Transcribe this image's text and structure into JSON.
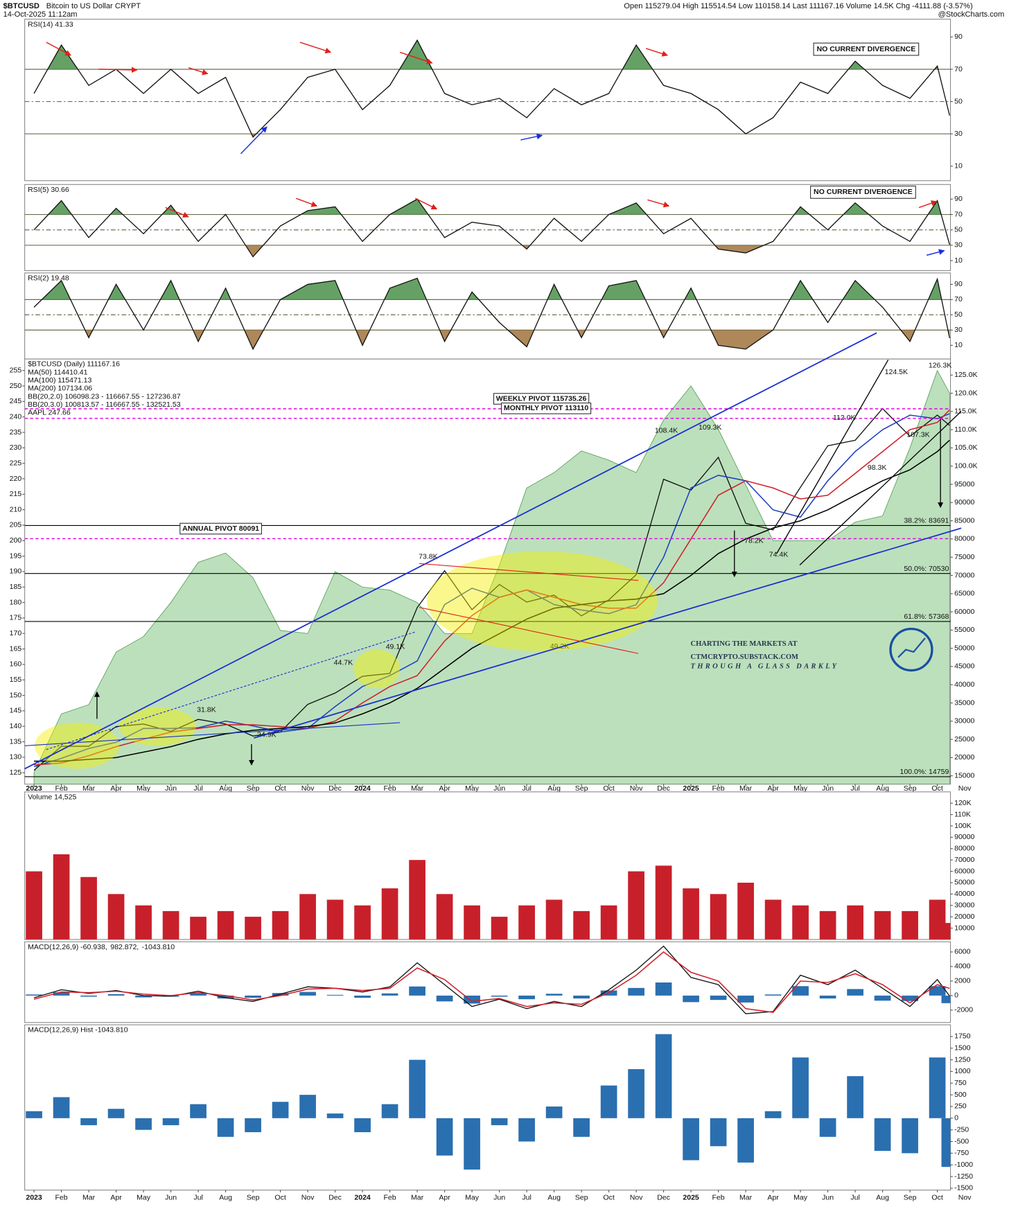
{
  "header": {
    "symbol": "$BTCUSD",
    "name": "Bitcoin to US Dollar CRYPT",
    "date": "14-Oct-2025 11:12am",
    "quote": "Open 115279.04 High 115514.54 Low 110158.14 Last 111167.16 Volume 14.5K Chg -4111.88 (-3.57%)",
    "source": "@StockCharts.com"
  },
  "watermark": [
    "CHARTING THE MARKETS AT",
    "CTMCRYPTO.SUBSTACK.COM",
    "THROUGH A GLASS DARKLY"
  ],
  "chart_data": [
    {
      "type": "line",
      "ylim": [
        1,
        101
      ],
      "yticks": [
        10,
        30,
        50,
        70,
        90
      ],
      "levels": [
        30,
        50,
        70
      ],
      "note": "NO CURRENT DIVERGENCE",
      "series": [
        {
          "name": "RSI(14) 41.33",
          "color": "#111111",
          "values": [
            55,
            85,
            60,
            70,
            55,
            70,
            55,
            65,
            28,
            45,
            65,
            70,
            45,
            60,
            88,
            55,
            48,
            52,
            40,
            58,
            48,
            55,
            85,
            60,
            55,
            45,
            30,
            40,
            62,
            55,
            75,
            60,
            52,
            72,
            41.33
          ]
        }
      ]
    },
    {
      "type": "line",
      "ylim": [
        -3,
        109
      ],
      "yticks": [
        10,
        30,
        50,
        70,
        90
      ],
      "levels": [
        30,
        50,
        70
      ],
      "note": "NO CURRENT DIVERGENCE",
      "series": [
        {
          "name": "RSI(5) 30.66",
          "color": "#111111",
          "values": [
            50,
            88,
            40,
            78,
            45,
            82,
            35,
            70,
            15,
            55,
            75,
            80,
            35,
            70,
            90,
            40,
            60,
            55,
            25,
            65,
            35,
            70,
            85,
            45,
            65,
            25,
            20,
            35,
            80,
            50,
            85,
            55,
            35,
            88,
            30.66
          ]
        }
      ]
    },
    {
      "type": "line",
      "ylim": [
        -8,
        105
      ],
      "yticks": [
        10,
        30,
        50,
        70,
        90
      ],
      "levels": [
        30,
        50,
        70
      ],
      "series": [
        {
          "name": "RSI(2) 19.48",
          "color": "#111111",
          "values": [
            60,
            95,
            20,
            90,
            30,
            95,
            15,
            85,
            5,
            70,
            90,
            95,
            10,
            85,
            98,
            15,
            80,
            40,
            8,
            90,
            20,
            88,
            95,
            20,
            85,
            10,
            5,
            30,
            95,
            40,
            95,
            60,
            15,
            97,
            19.48
          ]
        }
      ]
    },
    {
      "type": "line",
      "x": [
        0,
        1,
        2,
        3,
        4,
        5,
        6,
        7,
        8,
        9,
        10,
        11,
        12,
        13,
        14,
        15,
        16,
        17,
        18,
        19,
        20,
        21,
        22,
        23,
        24,
        25,
        26,
        27,
        28,
        29,
        30,
        31,
        32,
        33,
        33.45
      ],
      "xlim": [
        -0.34,
        33.48
      ],
      "xticks": [
        {
          "value": 0,
          "label": "2023"
        },
        {
          "value": 1,
          "label": "Feb"
        },
        {
          "value": 2,
          "label": "Mar"
        },
        {
          "value": 3,
          "label": "Apr"
        },
        {
          "value": 4,
          "label": "May"
        },
        {
          "value": 5,
          "label": "Jun"
        },
        {
          "value": 6,
          "label": "Jul"
        },
        {
          "value": 7,
          "label": "Aug"
        },
        {
          "value": 8,
          "label": "Sep"
        },
        {
          "value": 9,
          "label": "Oct"
        },
        {
          "value": 10,
          "label": "Nov"
        },
        {
          "value": 11,
          "label": "Dec"
        },
        {
          "value": 12,
          "label": "2024"
        },
        {
          "value": 13,
          "label": "Feb"
        },
        {
          "value": 14,
          "label": "Mar"
        },
        {
          "value": 15,
          "label": "Apr"
        },
        {
          "value": 16,
          "label": "May"
        },
        {
          "value": 17,
          "label": "Jun"
        },
        {
          "value": 18,
          "label": "Jul"
        },
        {
          "value": 19,
          "label": "Aug"
        },
        {
          "value": 20,
          "label": "Sep"
        },
        {
          "value": 21,
          "label": "Oct"
        },
        {
          "value": 22,
          "label": "Nov"
        },
        {
          "value": 23,
          "label": "Dec"
        },
        {
          "value": 24,
          "label": "2025"
        },
        {
          "value": 25,
          "label": "Feb"
        },
        {
          "value": 26,
          "label": "Mar"
        },
        {
          "value": 27,
          "label": "Apr"
        },
        {
          "value": 28,
          "label": "May"
        },
        {
          "value": 29,
          "label": "Jun"
        },
        {
          "value": 30,
          "label": "Jul"
        },
        {
          "value": 31,
          "label": "Aug"
        },
        {
          "value": 32,
          "label": "Sep"
        },
        {
          "value": 33,
          "label": "Oct"
        },
        {
          "value": 34,
          "label": "Nov"
        }
      ],
      "ylim": [
        12700,
        129400
      ],
      "yticks": [
        15000,
        20000,
        25000,
        30000,
        35000,
        40000,
        45000,
        50000,
        55000,
        60000,
        65000,
        70000,
        75000,
        80000,
        85000,
        90000,
        95000,
        {
          "value": 100000,
          "label": "100.0K"
        },
        {
          "value": 105000,
          "label": "105.0K"
        },
        {
          "value": 110000,
          "label": "110.0K"
        },
        {
          "value": 115000,
          "label": "115.0K"
        },
        {
          "value": 120000,
          "label": "120.0K"
        },
        {
          "value": 125000,
          "label": "125.0K"
        }
      ],
      "y2lim": [
        121.3,
        258.7
      ],
      "y2ticks": [
        125,
        130,
        135,
        140,
        145,
        150,
        155,
        160,
        165,
        170,
        175,
        180,
        185,
        190,
        195,
        200,
        205,
        210,
        215,
        220,
        225,
        230,
        235,
        240,
        245,
        250,
        255
      ],
      "legend_notes": [
        "BB(20,2.0) 106098.23 - 116667.55 - 127236.87",
        "BB(20,3.0) 100813.57 - 116667.55 - 132521.53"
      ],
      "pivots": [
        {
          "label": "WEEKLY PIVOT 115735.26",
          "value": 115735.26
        },
        {
          "label": "MONTHLY PIVOT 113110",
          "value": 113110
        },
        {
          "label": "ANNUAL PIVOT 80091",
          "value": 80091
        }
      ],
      "fib_levels": [
        {
          "label": "38.2%: 83691",
          "value": 83691
        },
        {
          "label": "50.0%: 70530",
          "value": 70530
        },
        {
          "label": "61.8%: 57368",
          "value": 57368
        },
        {
          "label": "100.0%: 14759",
          "value": 14759
        }
      ],
      "annotations": [
        {
          "text": "73.8K",
          "x": 14.4,
          "y": 73800
        },
        {
          "text": "108.4K",
          "x": 23.1,
          "y": 108400
        },
        {
          "text": "109.3K",
          "x": 24.7,
          "y": 109300
        },
        {
          "text": "74.4K",
          "x": 27.2,
          "y": 74400
        },
        {
          "text": "112.0K",
          "x": 29.6,
          "y": 112000
        },
        {
          "text": "124.5K",
          "x": 31.5,
          "y": 124500
        },
        {
          "text": "126.3K",
          "x": 33.1,
          "y": 126300
        },
        {
          "text": "49.2K",
          "x": 19.2,
          "y": 49200
        },
        {
          "text": "49.1K",
          "x": 13.2,
          "y": 49100
        },
        {
          "text": "44.7K",
          "x": 11.3,
          "y": 44700
        },
        {
          "text": "31.8K",
          "x": 6.3,
          "y": 31800
        },
        {
          "text": "24.9K",
          "x": 8.5,
          "y": 24900
        },
        {
          "text": "78.2K",
          "x": 26.3,
          "y": 78200
        },
        {
          "text": "98.3K",
          "x": 30.8,
          "y": 98300
        },
        {
          "text": "107.3K",
          "x": 32.3,
          "y": 107300
        }
      ],
      "series": [
        {
          "name": "$BTCUSD (Daily) 111167.16",
          "color": "#111111",
          "values": [
            16500,
            23100,
            23100,
            28500,
            29200,
            27200,
            30500,
            29200,
            25900,
            27000,
            34600,
            37700,
            42300,
            43100,
            61200,
            71300,
            60600,
            67500,
            62700,
            64600,
            58900,
            63300,
            70200,
            96400,
            93400,
            102400,
            84300,
            82500,
            94200,
            105600,
            107100,
            115800,
            108200,
            114000,
            111167.16
          ]
        },
        {
          "name": "MA(50) 114410.41",
          "color": "#1f3fbf",
          "values": [
            17500,
            19800,
            22500,
            24200,
            28000,
            28000,
            28200,
            30000,
            28700,
            27000,
            28000,
            34000,
            39500,
            42500,
            46500,
            62000,
            66500,
            64000,
            66000,
            62000,
            60500,
            59500,
            62000,
            75000,
            94000,
            97500,
            96000,
            88000,
            86000,
            96000,
            104000,
            110000,
            114000,
            113000,
            114410.41
          ]
        },
        {
          "name": "MA(100) 115471.13",
          "color": "#d0202a",
          "values": [
            18000,
            18500,
            20500,
            23000,
            25000,
            27000,
            28000,
            29000,
            29000,
            28500,
            28000,
            30000,
            35000,
            39500,
            42500,
            52000,
            59000,
            64000,
            66000,
            64000,
            62000,
            61000,
            61000,
            68000,
            80000,
            92000,
            96000,
            94000,
            91000,
            92000,
            98000,
            104000,
            110000,
            112000,
            115471.13
          ]
        },
        {
          "name": "MA(200) 107134.06",
          "color": "#000000",
          "values": [
            19000,
            19000,
            19500,
            20000,
            21500,
            23000,
            25000,
            26500,
            27500,
            28000,
            28500,
            29500,
            32000,
            35000,
            39000,
            44500,
            50000,
            54000,
            58000,
            61000,
            62000,
            63000,
            63500,
            65000,
            70000,
            76000,
            80000,
            83000,
            85000,
            88000,
            92000,
            96000,
            99000,
            104000,
            107134.06
          ]
        },
        {
          "name": "AAPL 247.66",
          "color": "#8fcc8f",
          "style": "area",
          "axis": "y2",
          "values": [
            125,
            144,
            147,
            164,
            169,
            180,
            193,
            196,
            188,
            171,
            170,
            190,
            185,
            184,
            180,
            170,
            170,
            192,
            217,
            222,
            229,
            226,
            222,
            239,
            250,
            236,
            218,
            200,
            200,
            200,
            206,
            208,
            230,
            255,
            247.66
          ]
        }
      ]
    },
    {
      "type": "bar",
      "ylim": [
        0,
        130000
      ],
      "yticks": [
        10000,
        20000,
        30000,
        40000,
        50000,
        60000,
        70000,
        80000,
        90000,
        {
          "value": 100000,
          "label": "100K"
        },
        {
          "value": 110000,
          "label": "110K"
        },
        {
          "value": 120000,
          "label": "120K"
        }
      ],
      "series": [
        {
          "name": "Volume 14,525",
          "color": "#c8202a",
          "values": [
            60000,
            75000,
            55000,
            40000,
            30000,
            25000,
            20000,
            25000,
            20000,
            25000,
            40000,
            35000,
            30000,
            45000,
            70000,
            40000,
            30000,
            20000,
            30000,
            35000,
            25000,
            30000,
            60000,
            65000,
            45000,
            40000,
            50000,
            35000,
            30000,
            25000,
            30000,
            25000,
            25000,
            35000,
            14525
          ]
        }
      ]
    },
    {
      "type": "line",
      "ylim": [
        -3700,
        7400
      ],
      "yticks": [
        -2000,
        0,
        2000,
        4000,
        6000
      ],
      "series": [
        {
          "name": "MACD(12,26,9) -60.938,",
          "color": "#111111",
          "values": [
            -300,
            800,
            300,
            700,
            0,
            -100,
            600,
            -300,
            -800,
            200,
            1200,
            1000,
            500,
            1200,
            4500,
            1500,
            -1500,
            -500,
            -1800,
            -800,
            -1500,
            800,
            3500,
            6800,
            2500,
            1500,
            -2500,
            -2200,
            2800,
            1500,
            3500,
            1000,
            -1500,
            2200,
            -60.938
          ]
        },
        {
          "name": "982.872,",
          "color": "#d0202a",
          "values": [
            -500,
            500,
            400,
            600,
            200,
            0,
            400,
            0,
            -600,
            0,
            900,
            1000,
            700,
            1000,
            3800,
            2200,
            -800,
            -400,
            -1500,
            -1000,
            -1200,
            400,
            2800,
            6000,
            3200,
            2000,
            -1800,
            -2300,
            2000,
            1800,
            3000,
            1500,
            -1000,
            1500,
            982.872
          ]
        },
        {
          "name": "-1043.810",
          "color": "#2a6fb0",
          "style": "bar",
          "values": [
            150,
            450,
            -150,
            200,
            -250,
            -150,
            300,
            -400,
            -300,
            350,
            500,
            100,
            -300,
            300,
            1250,
            -800,
            -1100,
            -150,
            -500,
            250,
            -400,
            700,
            1050,
            1800,
            -900,
            -600,
            -950,
            150,
            1300,
            -400,
            900,
            -700,
            -750,
            1300,
            -1043.81
          ]
        }
      ]
    },
    {
      "type": "bar",
      "ylim": [
        -1540,
        2000
      ],
      "yticks": [
        -1500,
        -1250,
        -1000,
        -750,
        -500,
        -250,
        0,
        250,
        500,
        750,
        1000,
        1250,
        1500,
        1750
      ],
      "series": [
        {
          "name": "MACD(12,26,9) Hist -1043.810",
          "color": "#2a6fb0",
          "values": [
            150,
            450,
            -150,
            200,
            -250,
            -150,
            300,
            -400,
            -300,
            350,
            500,
            100,
            -300,
            300,
            1250,
            -800,
            -1100,
            -150,
            -500,
            250,
            -400,
            700,
            1050,
            1800,
            -900,
            -600,
            -950,
            150,
            1300,
            -400,
            900,
            -700,
            -750,
            1300,
            -1043.81
          ]
        }
      ]
    }
  ]
}
